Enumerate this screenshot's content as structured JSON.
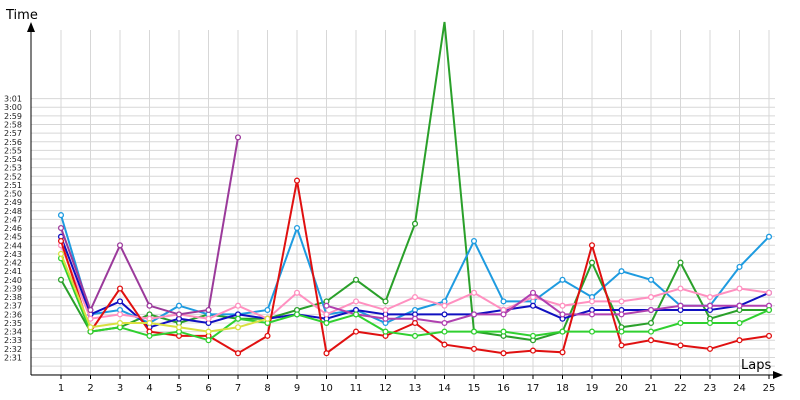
{
  "chart_data": {
    "type": "line",
    "xlabel": "Laps",
    "ylabel": "Time",
    "x": [
      1,
      2,
      3,
      4,
      5,
      6,
      7,
      8,
      9,
      10,
      11,
      12,
      13,
      14,
      15,
      16,
      17,
      18,
      19,
      20,
      21,
      22,
      23,
      24,
      25
    ],
    "xlim": [
      0,
      25.5
    ],
    "ylim_seconds": [
      150,
      184
    ],
    "y_tick_labels": [
      "2:31",
      "2:32",
      "2:33",
      "2:34",
      "2:35",
      "2:36",
      "2:37",
      "2:38",
      "2:39",
      "2:40",
      "2:41",
      "2:42",
      "2:43",
      "2:44",
      "2:45",
      "2:46",
      "2:47",
      "2:48",
      "2:49",
      "2:50",
      "2:51",
      "2:52",
      "2:53",
      "2:54",
      "2:55",
      "2:56",
      "2:57",
      "2:58",
      "2:59",
      "3:00",
      "3:01"
    ],
    "grid": true,
    "series": [
      {
        "color": "#2aa02a",
        "values": [
          "2:40",
          "2:34",
          "2:34.5",
          "2:36",
          "2:35",
          "2:36",
          "2:35.5",
          "2:35.5",
          "2:36.5",
          "2:37.5",
          "2:40",
          "2:37.5",
          "2:46.5",
          "3:10",
          "2:34",
          "2:33.5",
          "2:33",
          "2:34",
          "2:42",
          "2:34.5",
          "2:35",
          "2:42",
          "2:35.5",
          "2:36.5",
          "2:36.5"
        ]
      },
      {
        "color": "#1e9be0",
        "values": [
          "2:47.5",
          "2:36",
          "2:36.5",
          "2:35",
          "2:37",
          "2:36",
          "2:36",
          "2:36.5",
          "2:46",
          "2:36",
          "2:36.5",
          "2:35",
          "2:36.5",
          "2:37.5",
          "2:44.5",
          "2:37.5",
          "2:37.5",
          "2:40",
          "2:38",
          "2:41",
          "2:40",
          "2:37",
          "2:37",
          "2:41.5",
          "2:45"
        ]
      },
      {
        "color": "#1010c0",
        "values": [
          "2:45",
          "2:36",
          "2:37.5",
          "2:34.5",
          "2:35.5",
          "2:35",
          "2:36",
          "2:35.5",
          "2:36",
          "2:35.5",
          "2:36.5",
          "2:36",
          "2:36",
          "2:36",
          "2:36",
          "2:36.5",
          "2:37",
          "2:35.5",
          "2:36.5",
          "2:36.5",
          "2:36.5",
          "2:36.5",
          "2:36.5",
          "2:37",
          "2:38.5"
        ]
      },
      {
        "color": "#ff90c0",
        "values": [
          "2:44",
          "2:35.5",
          "2:36",
          "2:35.5",
          "2:36",
          "2:35.5",
          "2:37",
          "2:35.5",
          "2:38.5",
          "2:36",
          "2:37.5",
          "2:36.5",
          "2:38",
          "2:37",
          "2:38.5",
          "2:36.5",
          "2:38",
          "2:37",
          "2:37.5",
          "2:37.5",
          "2:38",
          "2:39",
          "2:38",
          "2:39",
          "2:38.5"
        ]
      },
      {
        "color": "#9b3a9b",
        "values": [
          "2:46",
          "2:36.5",
          "2:44",
          "2:37",
          "2:36",
          "2:36.5",
          "2:56.5",
          null,
          null,
          null,
          null,
          null,
          null,
          null,
          null,
          null,
          null,
          null,
          null,
          null,
          null,
          null,
          null,
          null,
          null
        ]
      },
      {
        "color": "#b040b0",
        "values": [
          null,
          null,
          null,
          null,
          null,
          null,
          null,
          null,
          null,
          "2:37",
          "2:36",
          "2:35.5",
          "2:35.5",
          "2:35",
          "2:36",
          "2:36",
          "2:38.5",
          "2:36",
          "2:36",
          "2:36",
          "2:36.5",
          "2:37",
          "2:37",
          "2:37",
          "2:37"
        ]
      },
      {
        "color": "#e01010",
        "values": [
          "2:44.5",
          "2:34",
          "2:39",
          "2:34",
          "2:33.5",
          "2:33.5",
          "2:31.5",
          "2:33.5",
          "2:51.5",
          "2:31.5",
          "2:34",
          "2:33.5",
          "2:35",
          "2:32.5",
          "2:32",
          "2:31.5",
          "2:31.8",
          "2:31.6",
          "2:44",
          "2:32.4",
          "2:33",
          "2:32.4",
          "2:32",
          "2:33",
          "2:33.5"
        ]
      },
      {
        "color": "#30d030",
        "values": [
          "2:42.5",
          "2:34",
          "2:34.5",
          "2:33.5",
          "2:34",
          "2:33",
          "2:35.5",
          "2:35",
          "2:36",
          "2:35",
          "2:36",
          "2:34",
          "2:33.5",
          "2:34",
          "2:34",
          "2:34",
          "2:33.5",
          "2:34",
          "2:34",
          "2:34",
          "2:34",
          "2:35",
          "2:35",
          "2:35",
          "2:36.5"
        ]
      },
      {
        "color": "#d8e040",
        "values": [
          "2:43",
          "2:34.5",
          "2:35",
          "2:35",
          "2:34.5",
          "2:34",
          "2:34.5",
          "2:35.5",
          null,
          null,
          null,
          null,
          null,
          null,
          null,
          null,
          null,
          null,
          null,
          null,
          null,
          null,
          null,
          null,
          null
        ]
      }
    ]
  }
}
